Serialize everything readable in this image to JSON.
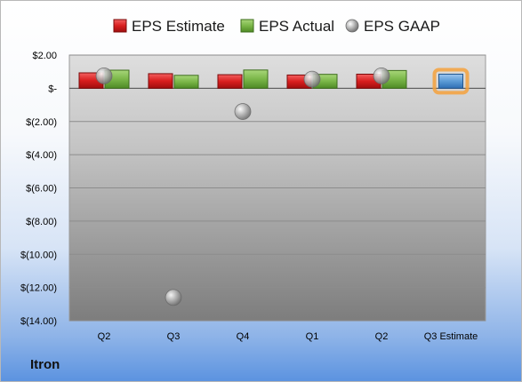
{
  "chart_data": {
    "type": "bar",
    "categories": [
      "Q2",
      "Q3",
      "Q4",
      "Q1",
      "Q2",
      "Q3 Estimate"
    ],
    "series": [
      {
        "name": "EPS Estimate",
        "type": "bar",
        "values": [
          0.93,
          0.88,
          0.82,
          0.8,
          0.85,
          null
        ],
        "color": "#e02020"
      },
      {
        "name": "EPS Actual",
        "type": "bar",
        "values": [
          1.09,
          0.78,
          1.1,
          0.84,
          1.07,
          null
        ],
        "color": "#7ab648"
      },
      {
        "name": "EPS GAAP",
        "type": "scatter",
        "values": [
          0.75,
          -12.6,
          -1.4,
          0.55,
          0.75,
          null
        ],
        "color": "#a8a8a8"
      },
      {
        "name": "Q3 Estimate",
        "type": "bar",
        "values": [
          null,
          null,
          null,
          null,
          null,
          0.85
        ],
        "color": "#5b9bd5",
        "highlight": "#f5a13c"
      }
    ],
    "ylim": [
      -14,
      2
    ],
    "y_ticks": [
      2,
      0,
      -2,
      -4,
      -6,
      -8,
      -10,
      -12,
      -14
    ],
    "y_tick_labels": [
      "$2.00",
      "$-",
      "$(2.00)",
      "$(4.00)",
      "$(6.00)",
      "$(8.00)",
      "$(10.00)",
      "$(12.00)",
      "$(14.00)"
    ],
    "grid": true,
    "legend": {
      "position": "top",
      "entries": [
        "EPS Estimate",
        "EPS Actual",
        "EPS GAAP"
      ]
    }
  },
  "company": "Itron"
}
